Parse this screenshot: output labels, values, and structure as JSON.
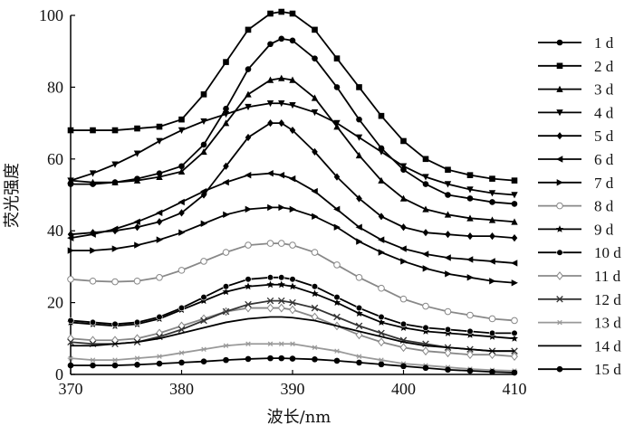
{
  "chart_data": {
    "type": "line",
    "title": "",
    "xlabel": "波长/nm",
    "ylabel": "荧光强度",
    "xlim": [
      370,
      410
    ],
    "ylim": [
      0,
      100
    ],
    "xticks": [
      370,
      380,
      390,
      400,
      410
    ],
    "yticks": [
      0,
      20,
      40,
      60,
      80,
      100
    ],
    "grid": false,
    "legend_position": "right",
    "x": [
      370,
      372,
      374,
      376,
      378,
      380,
      382,
      384,
      386,
      388,
      389,
      390,
      392,
      394,
      396,
      398,
      400,
      402,
      404,
      406,
      408,
      410
    ],
    "series": [
      {
        "name": "1 d",
        "marker": "circle",
        "color": "#000000",
        "values": [
          53,
          53,
          53.5,
          54.5,
          56,
          58,
          64,
          74,
          85,
          92,
          93.5,
          93,
          88,
          80,
          71,
          63,
          57,
          53,
          50,
          49,
          48,
          47.5
        ]
      },
      {
        "name": "2 d",
        "marker": "square",
        "color": "#000000",
        "values": [
          68,
          68,
          68,
          68.5,
          69,
          71,
          78,
          87,
          96,
          100.5,
          101,
          100.5,
          96,
          88,
          80,
          72,
          65,
          60,
          57,
          55.5,
          54.5,
          54
        ]
      },
      {
        "name": "3 d",
        "marker": "triangle-up",
        "color": "#000000",
        "values": [
          54,
          53.5,
          53.5,
          54,
          55,
          56.5,
          62,
          70,
          78,
          82,
          82.5,
          82,
          77,
          69,
          61,
          54,
          49,
          46,
          44.5,
          43.5,
          43,
          42.5
        ]
      },
      {
        "name": "4 d",
        "marker": "triangle-down",
        "color": "#000000",
        "values": [
          54,
          56,
          58.5,
          61.5,
          65,
          68,
          70.5,
          72.5,
          74.5,
          75.5,
          75.5,
          75,
          73,
          70,
          66,
          62,
          58,
          55,
          53,
          51.5,
          50.5,
          50
        ]
      },
      {
        "name": "5 d",
        "marker": "diamond",
        "color": "#000000",
        "values": [
          39,
          39.5,
          40,
          41,
          42.5,
          45,
          50,
          58,
          66,
          70,
          70,
          68,
          62,
          55,
          49,
          44,
          41,
          39.5,
          39,
          38.5,
          38.5,
          38
        ]
      },
      {
        "name": "6 d",
        "marker": "triangle-left",
        "color": "#000000",
        "values": [
          38,
          39,
          40.5,
          42.5,
          45,
          48,
          51,
          53.5,
          55.5,
          56,
          55.5,
          54.5,
          51,
          46,
          41,
          37.5,
          35,
          33.5,
          32.5,
          32,
          31.5,
          31
        ]
      },
      {
        "name": "7 d",
        "marker": "triangle-right",
        "color": "#000000",
        "values": [
          34.5,
          34.5,
          35,
          36,
          37.5,
          39.5,
          42,
          44.5,
          46,
          46.5,
          46.5,
          46,
          44,
          41,
          37,
          34,
          31.5,
          29.5,
          28,
          27,
          26,
          25.5
        ]
      },
      {
        "name": "8 d",
        "marker": "circle-open",
        "color": "#888888",
        "values": [
          26.5,
          26,
          25.8,
          26,
          27,
          29,
          31.5,
          34,
          36,
          36.5,
          36.5,
          36,
          34,
          30.5,
          27,
          24,
          21,
          19,
          17.5,
          16.5,
          15.5,
          15
        ]
      },
      {
        "name": "9 d",
        "marker": "star",
        "color": "#000000",
        "values": [
          14.5,
          14,
          13.5,
          14,
          15.5,
          18,
          20.5,
          23,
          24.5,
          25,
          25,
          24.5,
          22.5,
          20,
          17,
          14.5,
          13,
          12,
          11.5,
          11,
          10.5,
          10
        ]
      },
      {
        "name": "10 d",
        "marker": "circle-half",
        "color": "#000000",
        "values": [
          15,
          14.5,
          14,
          14.5,
          16,
          18.5,
          21.5,
          24.5,
          26.5,
          27,
          27,
          26.5,
          24.5,
          21.5,
          18.5,
          16,
          14,
          13,
          12.5,
          12,
          11.5,
          11.5
        ]
      },
      {
        "name": "11 d",
        "marker": "diamond-open",
        "color": "#888888",
        "values": [
          10,
          9.5,
          9.5,
          10,
          11.5,
          13.5,
          15.5,
          17.5,
          18.5,
          18.5,
          18.5,
          18,
          16,
          13.5,
          11,
          9,
          7.5,
          6.5,
          6,
          5.5,
          5.5,
          5
        ]
      },
      {
        "name": "12 d",
        "marker": "x",
        "color": "#333333",
        "values": [
          9,
          8.5,
          8.5,
          9,
          10.5,
          12.5,
          15,
          17.5,
          19.5,
          20.5,
          20.5,
          20,
          18.5,
          16,
          13.5,
          11.5,
          9.5,
          8.5,
          7.5,
          7,
          6.5,
          6.5
        ]
      },
      {
        "name": "13 d",
        "marker": "asterisk",
        "color": "#999999",
        "values": [
          4.5,
          4,
          4,
          4.5,
          5,
          6,
          7,
          8,
          8.5,
          8.5,
          8.5,
          8.5,
          7.5,
          6.5,
          5,
          4,
          3,
          2.5,
          2,
          1.5,
          1.2,
          1
        ]
      },
      {
        "name": "14 d",
        "marker": "none",
        "color": "#000000",
        "values": [
          8,
          8,
          8.5,
          9,
          10,
          11.5,
          13,
          14.5,
          15.5,
          16,
          16,
          15.8,
          15,
          13.5,
          12,
          10.5,
          9,
          8,
          7.5,
          7,
          6.5,
          6.5
        ]
      },
      {
        "name": "15 d",
        "marker": "circle",
        "color": "#000000",
        "values": [
          2.5,
          2.5,
          2.5,
          2.7,
          3,
          3.3,
          3.6,
          4,
          4.3,
          4.5,
          4.5,
          4.4,
          4.2,
          3.8,
          3.3,
          2.8,
          2.3,
          1.8,
          1.3,
          1,
          0.7,
          0.5
        ]
      }
    ]
  }
}
